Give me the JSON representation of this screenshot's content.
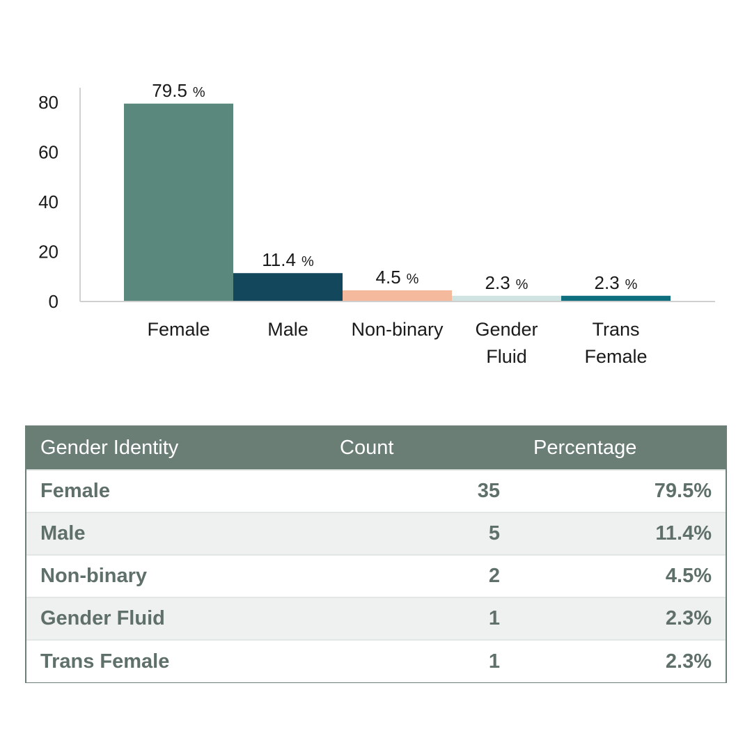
{
  "chart_data": {
    "type": "bar",
    "categories": [
      "Female",
      "Male",
      "Non-binary",
      "Gender Fluid",
      "Trans Female"
    ],
    "category_lines": [
      [
        "Female"
      ],
      [
        "Male"
      ],
      [
        "Non-binary"
      ],
      [
        "Gender",
        "Fluid"
      ],
      [
        "Trans",
        "Female"
      ]
    ],
    "values": [
      79.5,
      11.4,
      4.5,
      2.3,
      2.3
    ],
    "data_labels": [
      "79.5",
      "11.4",
      "4.5",
      "2.3",
      "2.3"
    ],
    "data_label_unit": "%",
    "colors": [
      "#5b887c",
      "#13485c",
      "#f5b99d",
      "#cfe4e1",
      "#0f6f7e"
    ],
    "ylim": [
      0,
      80
    ],
    "yticks": [
      0,
      20,
      40,
      60,
      80
    ],
    "title": "",
    "xlabel": "",
    "ylabel": "",
    "grid": false,
    "legend": "none"
  },
  "table": {
    "headers": [
      "Gender Identity",
      "Count",
      "Percentage"
    ],
    "rows": [
      {
        "identity": "Female",
        "count": "35",
        "percentage": "79.5%"
      },
      {
        "identity": "Male",
        "count": "5",
        "percentage": "11.4%"
      },
      {
        "identity": "Non-binary",
        "count": "2",
        "percentage": "4.5%"
      },
      {
        "identity": "Gender Fluid",
        "count": "1",
        "percentage": "2.3%"
      },
      {
        "identity": "Trans Female",
        "count": "1",
        "percentage": "2.3%"
      }
    ]
  }
}
